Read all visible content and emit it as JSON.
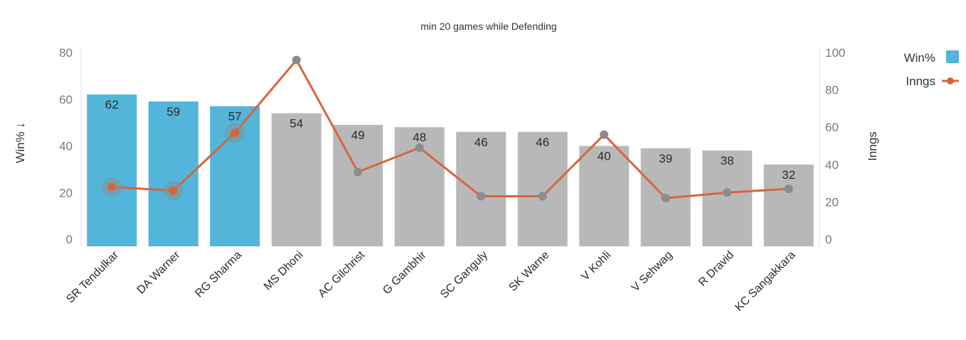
{
  "chart_data": {
    "type": "bar",
    "title": "min 20 games while Defending",
    "categories": [
      "SR Tendulkar",
      "DA Warner",
      "RG Sharma",
      "MS Dhoni",
      "AC Gilchrist",
      "G Gambhir",
      "SC Ganguly",
      "SK Warne",
      "V Kohli",
      "V Sehwag",
      "R Dravid",
      "KC Sangakkara"
    ],
    "series": [
      {
        "name": "Win%",
        "chart": "bar",
        "axis": "left",
        "values": [
          62,
          59,
          57,
          54,
          49,
          48,
          46,
          46,
          40,
          39,
          38,
          32
        ],
        "highlighted": [
          true,
          true,
          true,
          false,
          false,
          false,
          false,
          false,
          false,
          false,
          false,
          false
        ],
        "color": "#52b5d9",
        "muted_color": "#b8b8b8"
      },
      {
        "name": "Inngs",
        "chart": "line",
        "axis": "right",
        "values": [
          28,
          26,
          57,
          96,
          36,
          49,
          23,
          23,
          56,
          22,
          25,
          27
        ],
        "color": "#d9643a",
        "muted_point_color": "#8c8c8c"
      }
    ],
    "xlabel": "",
    "ylabel": "Win% ↓",
    "y2label": "Inngs",
    "ylim": [
      0,
      80
    ],
    "y2lim": [
      0,
      100
    ],
    "yticks": [
      0,
      20,
      40,
      60,
      80
    ],
    "y2ticks": [
      0,
      20,
      40,
      60,
      80,
      100
    ],
    "grid": false,
    "legend_position": "top-right",
    "legend": [
      {
        "label": "Win%",
        "marker": "square",
        "color": "#52b5d9"
      },
      {
        "label": "Inngs",
        "marker": "line-dot",
        "color": "#d9643a"
      }
    ]
  }
}
